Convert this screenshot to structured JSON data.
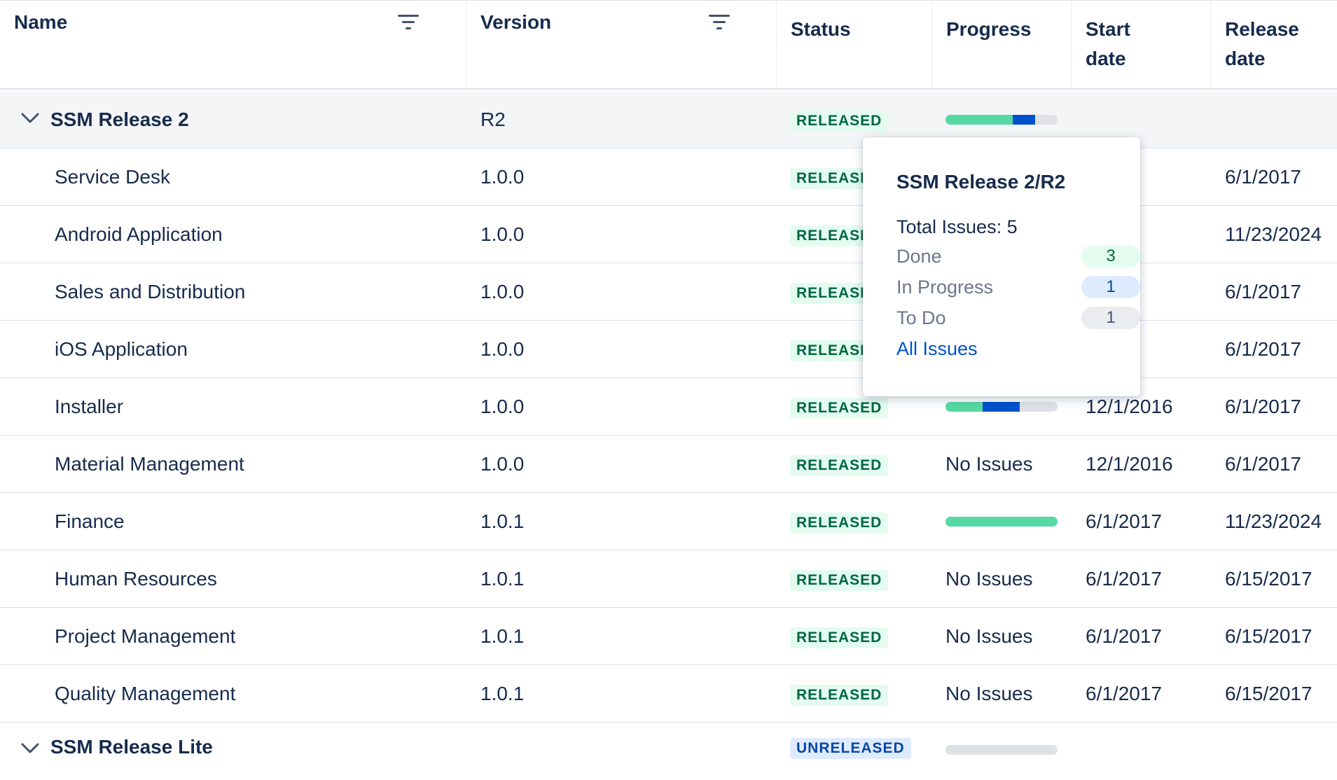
{
  "header": {
    "name": "Name",
    "version": "Version",
    "status": "Status",
    "progress": "Progress",
    "start_line1": "Start",
    "start_line2": "date",
    "release_line1": "Release",
    "release_line2": "date"
  },
  "groups": [
    {
      "name": "SSM Release 2",
      "version": "R2",
      "status": "RELEASED",
      "progress": {
        "done": 0.6,
        "in_progress": 0.2
      }
    },
    {
      "name": "SSM Release Lite",
      "status": "UNRELEASED",
      "progress": {
        "done": 0,
        "in_progress": 0
      }
    }
  ],
  "rows": [
    {
      "name": "Service Desk",
      "version": "1.0.0",
      "status": "RELEASED",
      "start": "016",
      "release": "6/1/2017"
    },
    {
      "name": "Android Application",
      "version": "1.0.0",
      "status": "RELEASED",
      "start": "016",
      "release": "11/23/2024"
    },
    {
      "name": "Sales and Distribution",
      "version": "1.0.0",
      "status": "RELEASED",
      "start": "016",
      "release": "6/1/2017"
    },
    {
      "name": "iOS Application",
      "version": "1.0.0",
      "status": "RELEASED",
      "start": "016",
      "release": "6/1/2017"
    },
    {
      "name": "Installer",
      "version": "1.0.0",
      "status": "RELEASED",
      "start": "12/1/2016",
      "release": "6/1/2017",
      "progress": {
        "done": 0.333,
        "in_progress": 0.333
      }
    },
    {
      "name": "Material Management",
      "version": "1.0.0",
      "status": "RELEASED",
      "progress_text": "No Issues",
      "start": "12/1/2016",
      "release": "6/1/2017"
    },
    {
      "name": "Finance",
      "version": "1.0.1",
      "status": "RELEASED",
      "start": "6/1/2017",
      "release": "11/23/2024",
      "progress": {
        "done": 1.0,
        "in_progress": 0
      }
    },
    {
      "name": "Human Resources",
      "version": "1.0.1",
      "status": "RELEASED",
      "progress_text": "No Issues",
      "start": "6/1/2017",
      "release": "6/15/2017"
    },
    {
      "name": "Project Management",
      "version": "1.0.1",
      "status": "RELEASED",
      "progress_text": "No Issues",
      "start": "6/1/2017",
      "release": "6/15/2017"
    },
    {
      "name": "Quality Management",
      "version": "1.0.1",
      "status": "RELEASED",
      "progress_text": "No Issues",
      "start": "6/1/2017",
      "release": "6/15/2017"
    }
  ],
  "popup": {
    "title": "SSM Release 2/R2",
    "total": "Total Issues: 5",
    "done_label": "Done",
    "done_count": "3",
    "progress_label": "In Progress",
    "progress_count": "1",
    "todo_label": "To Do",
    "todo_count": "1",
    "link": "All Issues"
  },
  "colors": {
    "done": "#57d9a3",
    "in_progress": "#0052cc",
    "track": "#dfe1e6"
  },
  "icons": {
    "filter": "filter-icon",
    "expand": "chevron-down-icon"
  }
}
